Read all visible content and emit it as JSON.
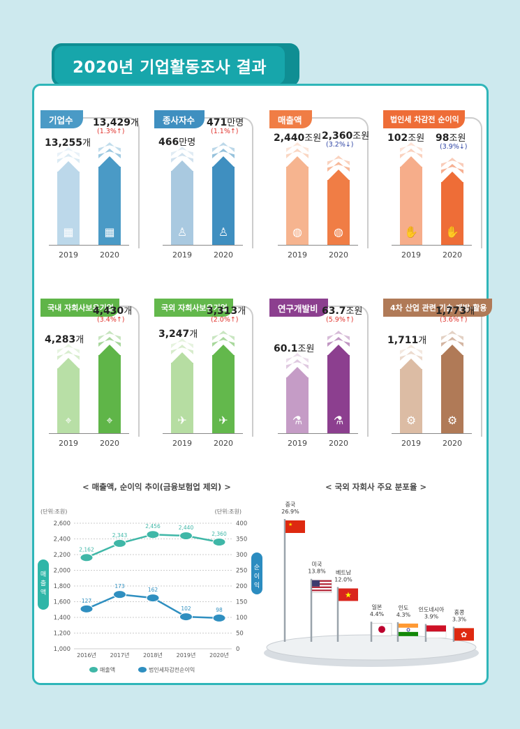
{
  "title": "2020년 기업활동조사 결과",
  "accent": "#17a6ab",
  "panels": [
    {
      "label": "기업수",
      "color": "#4a9ac6",
      "light": "#bcd8ea",
      "icon": "building-icon",
      "glyph": "▦",
      "v2019": "13,255",
      "u2019": "개",
      "v2020": "13,429",
      "u2020": "개",
      "change": "(1.3%↑)",
      "change_dir": "up",
      "h2019": 13255,
      "h2020": 13429
    },
    {
      "label": "종사자수",
      "color": "#3f8fc0",
      "light": "#a9c9e0",
      "icon": "person-icon",
      "glyph": "♙",
      "v2019": "466",
      "u2019": "만명",
      "v2020": "471",
      "u2020": "만명",
      "change": "(1.1%↑)",
      "change_dir": "up",
      "h2019": 466,
      "h2020": 471
    },
    {
      "label": "매출액",
      "color": "#f07d45",
      "light": "#f6b48f",
      "icon": "coins-icon",
      "glyph": "◍",
      "v2019": "2,440",
      "u2019": "조원",
      "v2020": "2,360",
      "u2020": "조원",
      "change": "(3.2%↓)",
      "change_dir": "down",
      "h2019": 2440,
      "h2020": 2360
    },
    {
      "label": "법인세 차감전 순이익",
      "color": "#ee6d37",
      "light": "#f6ad8a",
      "icon": "money-hand-icon",
      "glyph": "✋",
      "v2019": "102",
      "u2019": "조원",
      "v2020": "98",
      "u2020": "조원",
      "change": "(3.9%↓)",
      "change_dir": "down",
      "h2019": 102,
      "h2020": 98
    },
    {
      "label": "국내 자회사보유기업",
      "color": "#5fb548",
      "light": "#b8dfa6",
      "icon": "location-pin-icon",
      "glyph": "⌖",
      "v2019": "4,283",
      "u2019": "개",
      "v2020": "4,430",
      "u2020": "개",
      "change": "(3.4%↑)",
      "change_dir": "up",
      "h2019": 4283,
      "h2020": 4430
    },
    {
      "label": "국외 자회사보유기업",
      "color": "#63b84c",
      "light": "#b6dda2",
      "icon": "airplane-icon",
      "glyph": "✈",
      "v2019": "3,247",
      "u2019": "개",
      "v2020": "3,313",
      "u2020": "개",
      "change": "(2.0%↑)",
      "change_dir": "up",
      "h2019": 3247,
      "h2020": 3313
    },
    {
      "label": "연구개발비",
      "color": "#8c3f8f",
      "light": "#c59cc6",
      "icon": "test-tube-icon",
      "glyph": "⚗",
      "v2019": "60.1",
      "u2019": "조원",
      "v2020": "63.7",
      "u2020": "조원",
      "change": "(5.9%↑)",
      "change_dir": "up",
      "h2019": 60.1,
      "h2020": 63.7
    },
    {
      "label": "4차 산업 관련 기술 개발·활용",
      "color": "#b07a57",
      "light": "#dcbca4",
      "icon": "robot-icon",
      "glyph": "⚙",
      "v2019": "1,711",
      "u2019": "개",
      "v2020": "1,773",
      "u2020": "개",
      "change": "(3.6%↑)",
      "change_dir": "up",
      "h2019": 1711,
      "h2020": 1773
    }
  ],
  "year_labels": [
    "2019",
    "2020"
  ],
  "chart_data": [
    {
      "type": "line",
      "title": "< 매출액, 순이익 추이(금융보험업 제외) >",
      "x": [
        "2016년",
        "2017년",
        "2018년",
        "2019년",
        "2020년"
      ],
      "left_unit": "(단위:조원)",
      "right_unit": "(단위:조원)",
      "left_axis_label": "매출액",
      "right_axis_label": "순이익",
      "ylim_left": [
        1000,
        2600
      ],
      "ylim_right": [
        0,
        400
      ],
      "left_ticks": [
        "1,000",
        "1,200",
        "1,400",
        "1,600",
        "1,800",
        "2,000",
        "2,200",
        "2,400",
        "2,600"
      ],
      "right_ticks": [
        "0",
        "50",
        "100",
        "150",
        "200",
        "250",
        "300",
        "350",
        "400"
      ],
      "series": [
        {
          "name": "매출액",
          "axis": "left",
          "values": [
            2162,
            2343,
            2456,
            2440,
            2360
          ],
          "labels": [
            "2,162",
            "2,343",
            "2,456",
            "2,440",
            "2,360"
          ],
          "color": "#3fb7a7"
        },
        {
          "name": "법인세차감전순이익",
          "axis": "right",
          "values": [
            127,
            173,
            162,
            102,
            98
          ],
          "labels": [
            "127",
            "173",
            "162",
            "102",
            "98"
          ],
          "color": "#2f8fc0"
        }
      ]
    },
    {
      "type": "bar",
      "title": "< 국외 자회사 주요 분포율 >",
      "categories": [
        "중국",
        "미국",
        "베트남",
        "일본",
        "인도",
        "인도네시아",
        "홍콩"
      ],
      "values": [
        26.9,
        13.8,
        12.0,
        4.4,
        4.3,
        3.9,
        3.3
      ],
      "labels": [
        "26.9%",
        "13.8%",
        "12.0%",
        "4.4%",
        "4.3%",
        "3.9%",
        "3.3%"
      ]
    }
  ]
}
